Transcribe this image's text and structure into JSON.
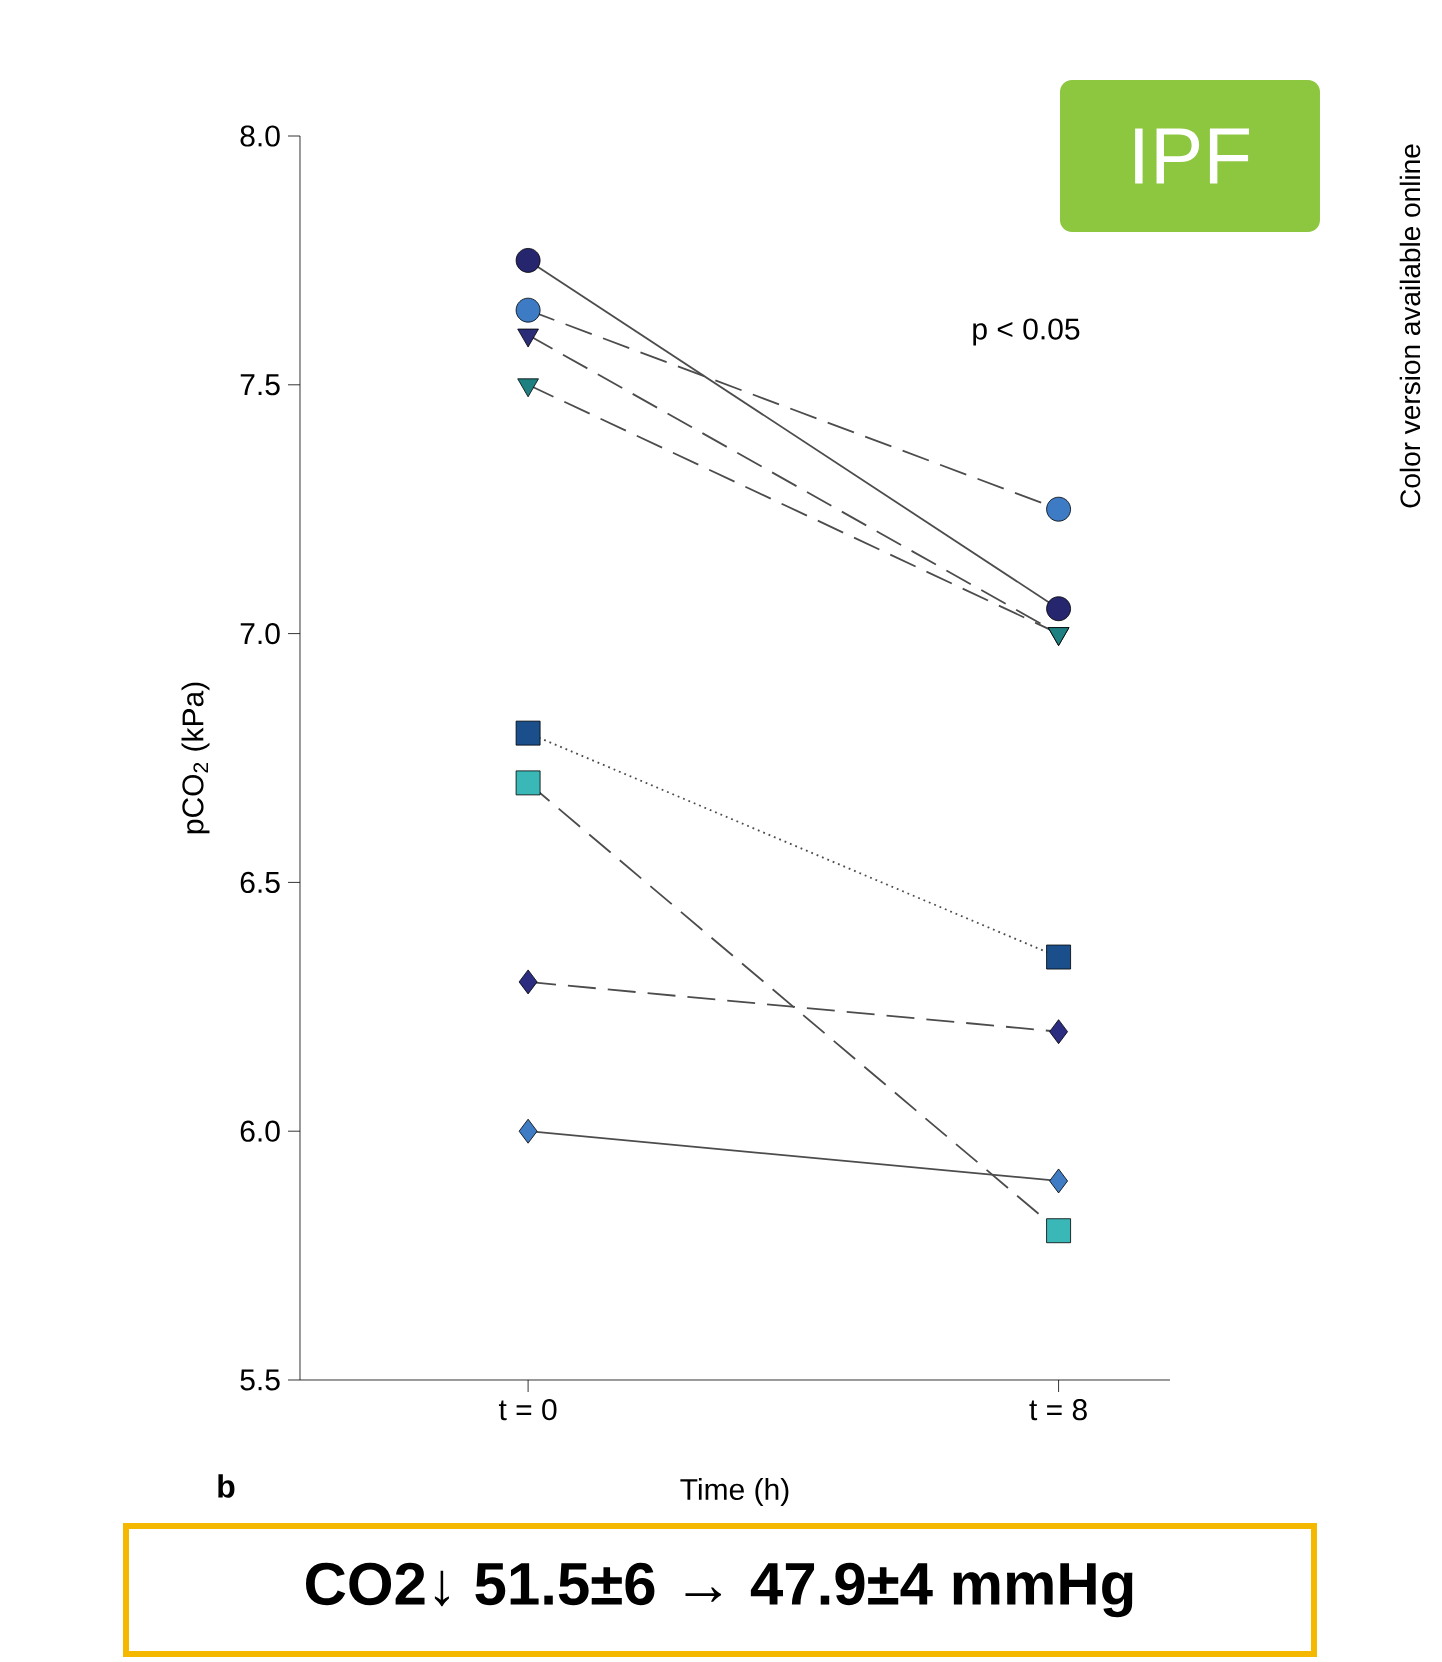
{
  "chart_data": {
    "type": "line",
    "title": "IPF",
    "xlabel": "Time (h)",
    "ylabel": "pCO$_{2}$ (kPa)",
    "categories": [
      "t = 0",
      "t = 8"
    ],
    "ylim": [
      5.5,
      8.0
    ],
    "yticks": [
      {
        "value": 5.5,
        "label": "5.5"
      },
      {
        "value": 6.0,
        "label": "6.0"
      },
      {
        "value": 6.5,
        "label": "6.5"
      },
      {
        "value": 7.0,
        "label": "7.0"
      },
      {
        "value": 7.5,
        "label": "7.5"
      },
      {
        "value": 8.0,
        "label": "8.0"
      }
    ],
    "grid": false,
    "series": [
      {
        "color": "#26266e",
        "values": [
          7.75,
          7.05
        ],
        "marker": "circle",
        "line_style": "solid"
      },
      {
        "color": "#3d7cc4",
        "values": [
          7.65,
          7.25
        ],
        "marker": "circle",
        "line_style": "dashed"
      },
      {
        "color": "#2a2c78",
        "values": [
          7.6,
          7.0
        ],
        "marker": "triangle",
        "line_style": "dashed"
      },
      {
        "color": "#1e8080",
        "values": [
          7.5,
          7.0
        ],
        "marker": "triangle",
        "line_style": "dashed"
      },
      {
        "color": "#1a4f8c",
        "values": [
          6.8,
          6.35
        ],
        "marker": "square",
        "line_style": "dotted"
      },
      {
        "color": "#3ab8b8",
        "values": [
          6.7,
          5.8
        ],
        "marker": "square",
        "line_style": "dashed"
      },
      {
        "color": "#2c2c80",
        "values": [
          6.3,
          6.2
        ],
        "marker": "diamond",
        "line_style": "dashed"
      },
      {
        "color": "#3f7cc4",
        "values": [
          6.0,
          5.9
        ],
        "marker": "diamond",
        "line_style": "solid"
      }
    ],
    "annotations": [
      "p < 0.05",
      "b",
      "Color version available online",
      "CO2↓ 51.5±6 → 47.9±4 mmHg"
    ]
  }
}
